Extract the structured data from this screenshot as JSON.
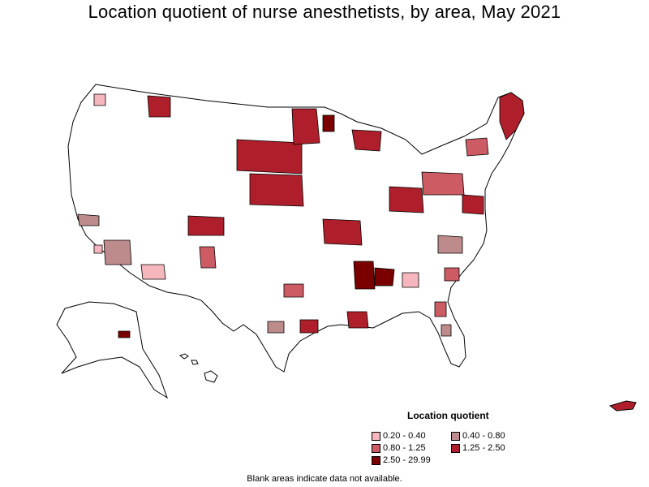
{
  "title": "Location quotient of nurse anesthetists, by area, May 2021",
  "legend": {
    "title": "Location quotient",
    "items": [
      {
        "label": "0.20 - 0.40",
        "color": "#f6b6bd"
      },
      {
        "label": "0.40 - 0.80",
        "color": "#bd8b8b"
      },
      {
        "label": "0.80 - 1.25",
        "color": "#cc5b64"
      },
      {
        "label": "1.25 - 2.50",
        "color": "#ae1f2b"
      },
      {
        "label": "2.50 - 29.99",
        "color": "#7a0000"
      }
    ]
  },
  "footnote": "Blank areas indicate data not available.",
  "colors": {
    "low": "#f6b6bd",
    "midlow": "#bd8b8b",
    "mid": "#cc5b64",
    "high": "#ae1f2b",
    "top": "#7a0000",
    "blank": "#ffffff",
    "border": "#000000"
  }
}
